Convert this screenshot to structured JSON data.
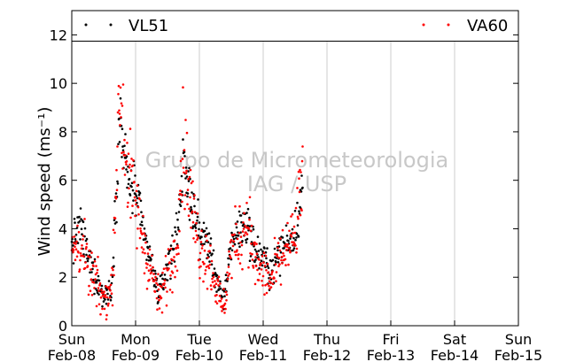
{
  "chart_data": {
    "type": "scatter",
    "ylabel": "Wind speed (ms⁻¹)",
    "ylim": [
      0,
      13
    ],
    "yticks": [
      0,
      2,
      4,
      6,
      8,
      10,
      12
    ],
    "xlim_days": [
      0,
      7
    ],
    "xticks": [
      {
        "day": "Sun",
        "date": "Feb-08"
      },
      {
        "day": "Mon",
        "date": "Feb-09"
      },
      {
        "day": "Tue",
        "date": "Feb-10"
      },
      {
        "day": "Wed",
        "date": "Feb-11"
      },
      {
        "day": "Thu",
        "date": "Feb-12"
      },
      {
        "day": "Fri",
        "date": "Feb-13"
      },
      {
        "day": "Sat",
        "date": "Feb-14"
      },
      {
        "day": "Sun",
        "date": "Feb-15"
      }
    ],
    "grid": "x",
    "legend": "top",
    "watermark": [
      "Grupo de Micrometeorologia",
      "IAG / USP"
    ],
    "series": [
      {
        "name": "VL51",
        "color": "#000000",
        "profile": [
          [
            "Feb-08 00:00",
            3.2
          ],
          [
            "Feb-08 03:00",
            4.2
          ],
          [
            "Feb-08 06:00",
            2.8
          ],
          [
            "Feb-08 09:00",
            2.0
          ],
          [
            "Feb-08 12:00",
            1.2
          ],
          [
            "Feb-08 15:00",
            1.6
          ],
          [
            "Feb-08 18:00",
            8.6
          ],
          [
            "Feb-08 21:00",
            6.0
          ],
          [
            "Feb-09 00:00",
            5.5
          ],
          [
            "Feb-09 03:00",
            3.8
          ],
          [
            "Feb-09 06:00",
            2.5
          ],
          [
            "Feb-09 09:00",
            1.2
          ],
          [
            "Feb-09 12:00",
            2.5
          ],
          [
            "Feb-09 15:00",
            3.5
          ],
          [
            "Feb-09 18:00",
            6.5
          ],
          [
            "Feb-09 21:00",
            5.2
          ],
          [
            "Feb-10 00:00",
            3.8
          ],
          [
            "Feb-10 03:00",
            3.5
          ],
          [
            "Feb-10 06:00",
            2.2
          ],
          [
            "Feb-10 09:00",
            0.8
          ],
          [
            "Feb-10 12:00",
            3.5
          ],
          [
            "Feb-10 15:00",
            4.0
          ],
          [
            "Feb-10 18:00",
            4.2
          ],
          [
            "Feb-10 21:00",
            3.0
          ],
          [
            "Feb-11 00:00",
            2.8
          ],
          [
            "Feb-11 03:00",
            2.2
          ],
          [
            "Feb-11 06:00",
            3.0
          ],
          [
            "Feb-11 09:00",
            3.5
          ],
          [
            "Feb-11 12:00",
            3.8
          ],
          [
            "Feb-11 15:00",
            5.8
          ]
        ]
      },
      {
        "name": "VA60",
        "color": "#ff0000",
        "profile": [
          [
            "Feb-08 00:00",
            3.0
          ],
          [
            "Feb-08 03:00",
            3.5
          ],
          [
            "Feb-08 06:00",
            2.3
          ],
          [
            "Feb-08 09:00",
            1.8
          ],
          [
            "Feb-08 12:00",
            1.0
          ],
          [
            "Feb-08 15:00",
            1.5
          ],
          [
            "Feb-08 18:00",
            9.5
          ],
          [
            "Feb-08 21:00",
            6.5
          ],
          [
            "Feb-09 00:00",
            5.0
          ],
          [
            "Feb-09 03:00",
            3.5
          ],
          [
            "Feb-09 06:00",
            2.2
          ],
          [
            "Feb-09 09:00",
            1.0
          ],
          [
            "Feb-09 12:00",
            2.2
          ],
          [
            "Feb-09 15:00",
            3.0
          ],
          [
            "Feb-09 18:00",
            7.5
          ],
          [
            "Feb-09 21:00",
            5.0
          ],
          [
            "Feb-10 00:00",
            3.2
          ],
          [
            "Feb-10 03:00",
            3.0
          ],
          [
            "Feb-10 06:00",
            1.8
          ],
          [
            "Feb-10 09:00",
            0.6
          ],
          [
            "Feb-10 12:00",
            3.2
          ],
          [
            "Feb-10 15:00",
            3.5
          ],
          [
            "Feb-10 18:00",
            4.5
          ],
          [
            "Feb-10 21:00",
            2.5
          ],
          [
            "Feb-11 00:00",
            2.2
          ],
          [
            "Feb-11 03:00",
            1.8
          ],
          [
            "Feb-11 06:00",
            2.6
          ],
          [
            "Feb-11 09:00",
            3.2
          ],
          [
            "Feb-11 12:00",
            3.6
          ],
          [
            "Feb-11 15:00",
            6.5
          ]
        ]
      }
    ]
  }
}
